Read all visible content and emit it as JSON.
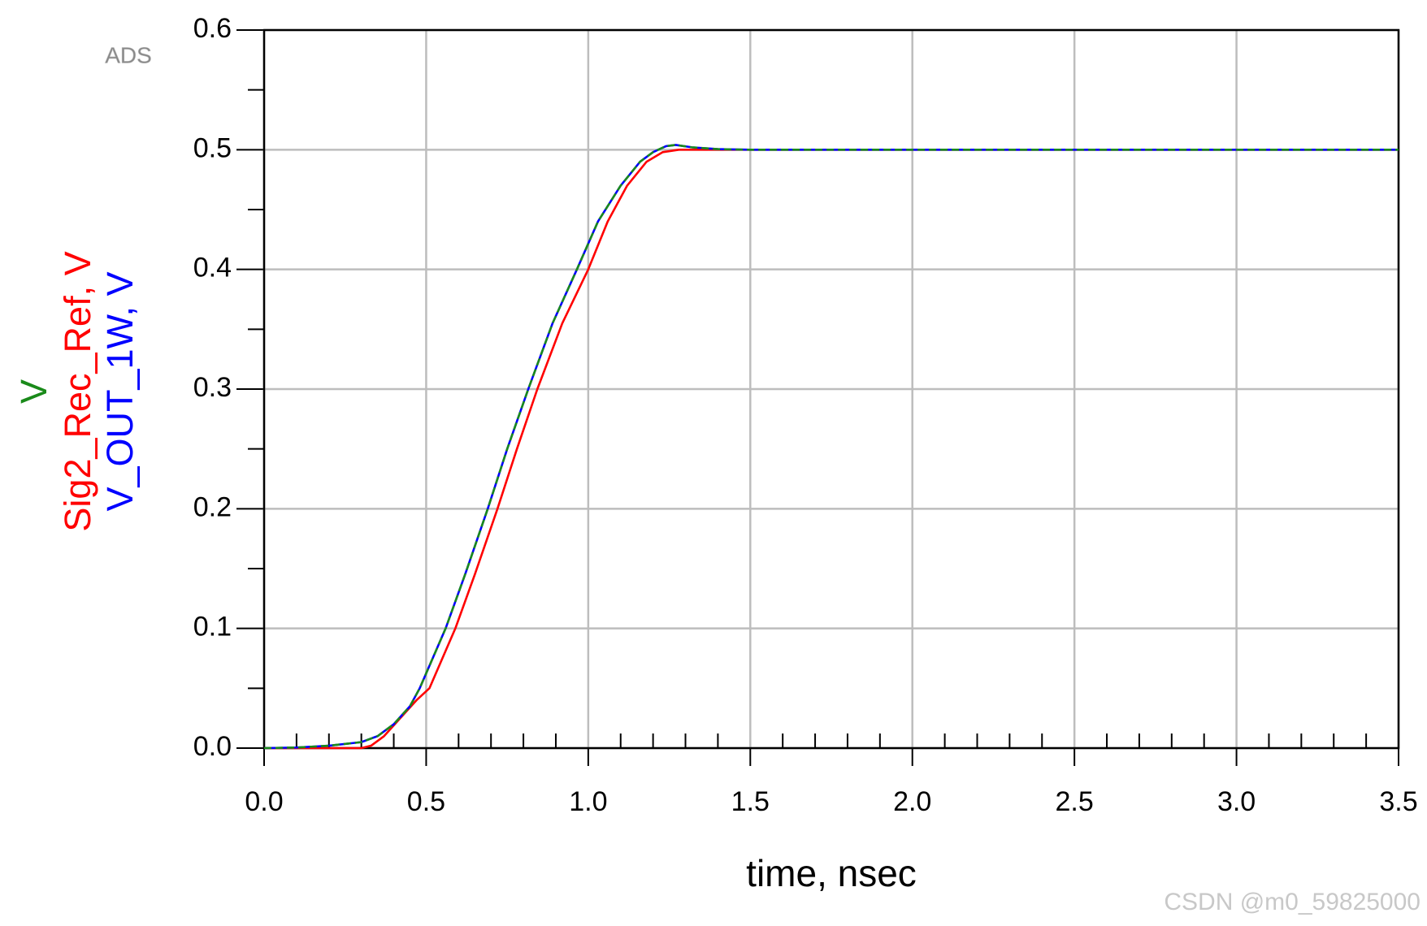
{
  "chart_data": {
    "type": "line",
    "logo": "ADS",
    "watermark": "CSDN @m0_59825000",
    "x_label": "time, nsec",
    "xlim": [
      0,
      3.5
    ],
    "ylim": [
      0,
      0.6
    ],
    "xticks": [
      {
        "value": 0,
        "label": "0.0"
      },
      {
        "value": 0.5,
        "label": "0.5"
      },
      {
        "value": 1,
        "label": "1.0"
      },
      {
        "value": 1.5,
        "label": "1.5"
      },
      {
        "value": 2,
        "label": "2.0"
      },
      {
        "value": 2.5,
        "label": "2.5"
      },
      {
        "value": 3,
        "label": "3.0"
      },
      {
        "value": 3.5,
        "label": "3.5"
      }
    ],
    "yticks": [
      {
        "value": 0,
        "label": "0.0"
      },
      0.1,
      0.2,
      0.3,
      0.4,
      0.5,
      0.6
    ],
    "x_minor_ticks": [
      0.1,
      0.2,
      0.3,
      0.4,
      0.6,
      0.7,
      0.8,
      0.9,
      1.1,
      1.2,
      1.3,
      1.4,
      1.6,
      1.7,
      1.8,
      1.9,
      2.1,
      2.2,
      2.3,
      2.4,
      2.6,
      2.7,
      2.8,
      2.9,
      3.1,
      3.2,
      3.3,
      3.4
    ],
    "y_minor_ticks": [
      0.05,
      0.15,
      0.25,
      0.35,
      0.45,
      0.55
    ],
    "grid": true,
    "series": [
      {
        "name": "V",
        "color": "#1a8a1a",
        "line_style": "dashed",
        "x": [
          0,
          0.1,
          0.2,
          0.3,
          0.35,
          0.4,
          0.45,
          0.48,
          0.52,
          0.56,
          0.62,
          0.69,
          0.75,
          0.815,
          0.89,
          0.965,
          1.03,
          1.1,
          1.16,
          1.2,
          1.24,
          1.27,
          1.32,
          1.4,
          1.5,
          2.0,
          2.5,
          3.0,
          3.5
        ],
        "values": [
          0,
          0.0005,
          0.002,
          0.005,
          0.01,
          0.02,
          0.035,
          0.05,
          0.075,
          0.1,
          0.145,
          0.2,
          0.25,
          0.3,
          0.355,
          0.4,
          0.44,
          0.47,
          0.49,
          0.498,
          0.503,
          0.504,
          0.502,
          0.5005,
          0.5,
          0.5,
          0.5,
          0.5,
          0.5
        ]
      },
      {
        "name": "Sig2_Rec_Ref, V",
        "color": "#ff0000",
        "line_style": "solid",
        "x": [
          0,
          0.1,
          0.2,
          0.3,
          0.33,
          0.37,
          0.42,
          0.47,
          0.51,
          0.55,
          0.59,
          0.65,
          0.72,
          0.78,
          0.843,
          0.92,
          1.0,
          1.06,
          1.12,
          1.18,
          1.23,
          1.28,
          1.35,
          1.5,
          2.0,
          2.5,
          3.0,
          3.5
        ],
        "values": [
          0,
          0,
          0,
          0,
          0.002,
          0.01,
          0.025,
          0.04,
          0.05,
          0.075,
          0.1,
          0.145,
          0.2,
          0.25,
          0.3,
          0.355,
          0.4,
          0.44,
          0.47,
          0.49,
          0.498,
          0.5,
          0.5,
          0.5,
          0.5,
          0.5,
          0.5,
          0.5
        ]
      },
      {
        "name": "V_OUT_1W, V",
        "color": "#0000ff",
        "line_style": "solid",
        "x": [
          0,
          0.1,
          0.2,
          0.3,
          0.35,
          0.4,
          0.45,
          0.48,
          0.52,
          0.56,
          0.62,
          0.69,
          0.75,
          0.815,
          0.89,
          0.965,
          1.03,
          1.1,
          1.16,
          1.2,
          1.24,
          1.27,
          1.32,
          1.4,
          1.5,
          2.0,
          2.5,
          3.0,
          3.5
        ],
        "values": [
          0,
          0.0005,
          0.002,
          0.005,
          0.01,
          0.02,
          0.035,
          0.05,
          0.075,
          0.1,
          0.145,
          0.2,
          0.25,
          0.3,
          0.355,
          0.4,
          0.44,
          0.47,
          0.49,
          0.498,
          0.503,
          0.504,
          0.502,
          0.5005,
          0.5,
          0.5,
          0.5,
          0.5,
          0.5
        ]
      }
    ]
  }
}
